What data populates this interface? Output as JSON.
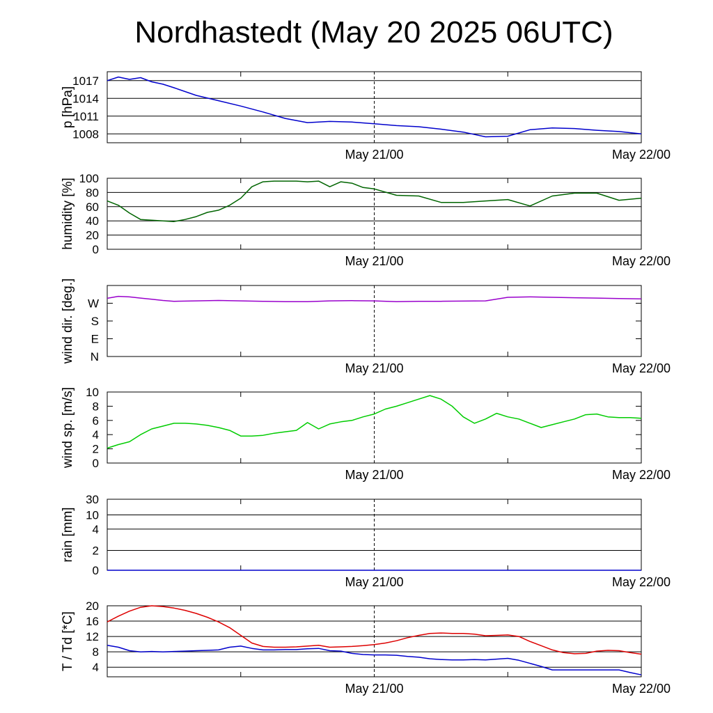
{
  "title": "Nordhastedt (May 20 2025 06UTC)",
  "chart_data": [
    {
      "type": "line",
      "ylabel": "p [hPa]",
      "yticks": [
        1008,
        1011,
        1014,
        1017
      ],
      "ylim": [
        1006.5,
        1018.5
      ],
      "grid": true,
      "xticks": [
        "May 21/00",
        "May 22/00"
      ],
      "series": [
        {
          "color": "#0000cc",
          "x": [
            0,
            1,
            2,
            3,
            4,
            5,
            6,
            8,
            10,
            12,
            14,
            16,
            18,
            20,
            22,
            24,
            26,
            28,
            30,
            32,
            34,
            36,
            38,
            40,
            42,
            44,
            46,
            48
          ],
          "values": [
            1017,
            1017.6,
            1017.2,
            1017.5,
            1016.8,
            1016.4,
            1015.8,
            1014.5,
            1013.6,
            1012.7,
            1011.7,
            1010.6,
            1009.9,
            1010.1,
            1010,
            1009.7,
            1009.4,
            1009.2,
            1008.8,
            1008.3,
            1007.5,
            1007.6,
            1008.7,
            1009,
            1008.9,
            1008.6,
            1008.4,
            1008
          ]
        }
      ]
    },
    {
      "type": "line",
      "ylabel": "humidity [%]",
      "yticks": [
        0,
        20,
        40,
        60,
        80,
        100
      ],
      "ylim": [
        0,
        100
      ],
      "grid": true,
      "xticks": [
        "May 21/00",
        "May 22/00"
      ],
      "series": [
        {
          "color": "#006400",
          "x": [
            0,
            1,
            2,
            3,
            4,
            5,
            6,
            7,
            8,
            9,
            10,
            11,
            12,
            13,
            14,
            15,
            16,
            17,
            18,
            19,
            20,
            21,
            22,
            23,
            24,
            26,
            28,
            30,
            32,
            34,
            36,
            38,
            40,
            42,
            44,
            46,
            48
          ],
          "values": [
            68,
            62,
            51,
            42,
            41,
            40,
            39,
            42,
            46,
            52,
            55,
            62,
            72,
            88,
            95,
            96,
            96,
            96,
            95,
            96,
            88,
            95,
            93,
            87,
            85,
            76,
            75,
            66,
            66,
            68,
            70,
            61,
            75,
            79,
            79,
            69,
            72
          ]
        }
      ]
    },
    {
      "type": "line",
      "ylabel": "wind dir. [deg.]",
      "yticks": [
        "N",
        "E",
        "S",
        "W"
      ],
      "ylim": [
        0,
        360
      ],
      "grid": false,
      "xticks": [
        "May 21/00",
        "May 22/00"
      ],
      "series": [
        {
          "color": "#9900cc",
          "x": [
            0,
            1,
            2,
            3,
            4,
            5,
            6,
            8,
            10,
            12,
            14,
            16,
            18,
            20,
            22,
            24,
            26,
            28,
            30,
            32,
            34,
            36,
            38,
            40,
            42,
            44,
            46,
            48
          ],
          "values": [
            295,
            305,
            302,
            296,
            290,
            284,
            280,
            282,
            284,
            282,
            280,
            278,
            278,
            282,
            283,
            282,
            278,
            280,
            280,
            281,
            282,
            300,
            302,
            300,
            298,
            296,
            294,
            292
          ]
        }
      ]
    },
    {
      "type": "line",
      "ylabel": "wind sp. [m/s]",
      "yticks": [
        0,
        2,
        4,
        6,
        8,
        10
      ],
      "ylim": [
        0,
        10
      ],
      "grid": false,
      "xticks": [
        "May 21/00",
        "May 22/00"
      ],
      "series": [
        {
          "color": "#00cc00",
          "x": [
            0,
            1,
            2,
            3,
            4,
            5,
            6,
            7,
            8,
            9,
            10,
            11,
            12,
            13,
            14,
            15,
            16,
            17,
            18,
            19,
            20,
            21,
            22,
            23,
            24,
            25,
            26,
            27,
            28,
            29,
            30,
            31,
            32,
            33,
            34,
            35,
            36,
            37,
            38,
            39,
            40,
            41,
            42,
            43,
            44,
            45,
            46,
            47,
            48
          ],
          "values": [
            2.1,
            2.6,
            3.0,
            4.0,
            4.8,
            5.2,
            5.6,
            5.6,
            5.5,
            5.3,
            5.0,
            4.6,
            3.8,
            3.8,
            3.9,
            4.2,
            4.4,
            4.6,
            5.7,
            4.8,
            5.5,
            5.8,
            6.0,
            6.5,
            6.9,
            7.6,
            8.0,
            8.5,
            9.0,
            9.5,
            9.0,
            8.0,
            6.5,
            5.6,
            6.2,
            7.0,
            6.5,
            6.2,
            5.6,
            5.0,
            5.4,
            5.8,
            6.2,
            6.8,
            6.9,
            6.5,
            6.4,
            6.4,
            6.3
          ]
        }
      ]
    },
    {
      "type": "line",
      "ylabel": "rain [mm]",
      "yticks": [
        "0",
        "2",
        "4",
        "10",
        "30"
      ],
      "ylim": [
        0,
        30
      ],
      "grid": true,
      "xticks": [
        "May 21/00",
        "May 22/00"
      ],
      "series": [
        {
          "color": "#0000cc",
          "x": [
            0,
            48
          ],
          "values": [
            0,
            0
          ]
        }
      ]
    },
    {
      "type": "line",
      "ylabel": "T / Td [*C]",
      "yticks": [
        4,
        8,
        12,
        16,
        20
      ],
      "ylim": [
        1.5,
        20
      ],
      "grid": true,
      "xticks": [
        "May 21/00",
        "May 22/00"
      ],
      "series": [
        {
          "color": "#dd0000",
          "x": [
            0,
            1,
            2,
            3,
            4,
            5,
            6,
            7,
            8,
            9,
            10,
            11,
            12,
            13,
            14,
            15,
            16,
            17,
            18,
            19,
            20,
            21,
            22,
            23,
            24,
            25,
            26,
            27,
            28,
            29,
            30,
            31,
            32,
            33,
            34,
            35,
            36,
            37,
            38,
            39,
            40,
            41,
            42,
            43,
            44,
            45,
            46,
            47,
            48
          ],
          "values": [
            15.8,
            17.3,
            18.6,
            19.6,
            20.0,
            19.8,
            19.4,
            18.8,
            18.0,
            17.0,
            15.8,
            14.3,
            12.3,
            10.3,
            9.4,
            9.2,
            9.2,
            9.3,
            9.5,
            9.7,
            9.2,
            9.3,
            9.4,
            9.6,
            9.9,
            10.3,
            10.9,
            11.7,
            12.3,
            12.8,
            12.9,
            12.8,
            12.8,
            12.6,
            12.2,
            12.3,
            12.4,
            12.0,
            10.7,
            9.6,
            8.5,
            7.8,
            7.5,
            7.6,
            8.2,
            8.4,
            8.3,
            7.8,
            7.4
          ]
        },
        {
          "color": "#0000cc",
          "x": [
            0,
            1,
            2,
            3,
            4,
            5,
            6,
            7,
            8,
            9,
            10,
            11,
            12,
            13,
            14,
            15,
            16,
            17,
            18,
            19,
            20,
            21,
            22,
            23,
            24,
            25,
            26,
            27,
            28,
            29,
            30,
            31,
            32,
            33,
            34,
            35,
            36,
            37,
            38,
            39,
            40,
            41,
            42,
            43,
            44,
            45,
            46,
            47,
            48
          ],
          "values": [
            9.7,
            9.2,
            8.3,
            8.0,
            8.1,
            8.0,
            8.1,
            8.2,
            8.3,
            8.4,
            8.5,
            9.2,
            9.5,
            8.9,
            8.5,
            8.5,
            8.6,
            8.6,
            8.8,
            8.9,
            8.3,
            8.2,
            7.6,
            7.3,
            7.2,
            7.2,
            7.1,
            6.8,
            6.6,
            6.2,
            6.0,
            5.9,
            5.9,
            6.0,
            5.9,
            6.1,
            6.3,
            5.8,
            5.0,
            4.2,
            3.3,
            3.3,
            3.3,
            3.3,
            3.3,
            3.3,
            3.3,
            2.6,
            2.0
          ]
        }
      ]
    }
  ]
}
